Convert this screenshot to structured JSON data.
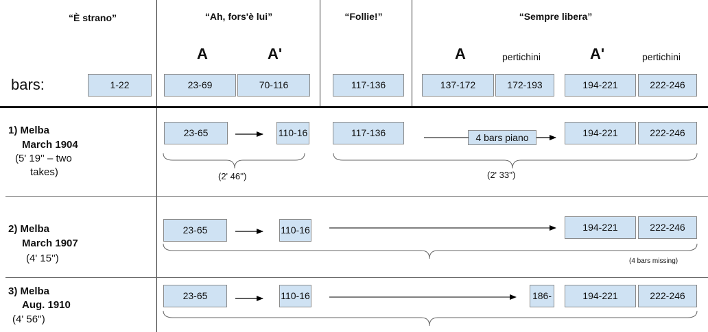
{
  "header": {
    "sections": [
      "“È strano”",
      "“Ah, fors'è lui”",
      "“Follie!”",
      "“Sempre libera”"
    ],
    "part_labels": {
      "A1": "A",
      "A1p": "A'",
      "A2": "A",
      "A2p": "A'"
    },
    "pertichini": "pertichini",
    "bars_label": "bars:",
    "bars": [
      "1-22",
      "23-69",
      "70-116",
      "117-136",
      "137-172",
      "172-193",
      "194-221",
      "222-246"
    ]
  },
  "rows": [
    {
      "number": "1)",
      "performer": "Melba",
      "date": "March 1904",
      "duration_line1": "(5' 19'' – two",
      "duration_line2": "takes)",
      "boxes": [
        "23-65",
        "110-16",
        "117-136",
        "4 bars piano",
        "194-221",
        "222-246"
      ],
      "group_durations": [
        "(2' 46'')",
        "(2' 33'')"
      ]
    },
    {
      "number": "2)",
      "performer": "Melba",
      "date": "March 1907",
      "duration": "(4' 15'')",
      "boxes": [
        "23-65",
        "110-16",
        "194-221",
        "222-246"
      ],
      "note": "(4 bars missing)"
    },
    {
      "number": "3)",
      "performer": "Melba",
      "date": "Aug. 1910",
      "duration": "(4' 56'')",
      "boxes": [
        "23-65",
        "110-16",
        "186-",
        "194-221",
        "222-246"
      ]
    }
  ]
}
